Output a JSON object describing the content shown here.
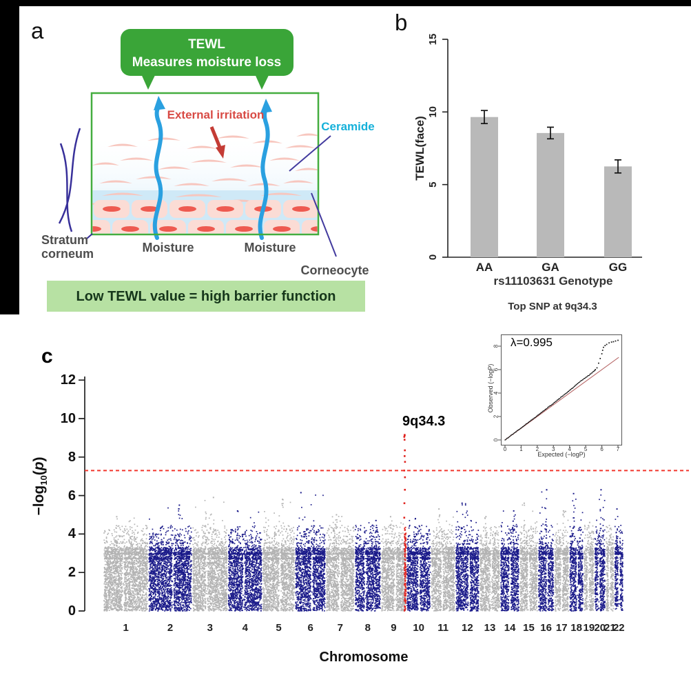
{
  "figure": {
    "panel_a": {
      "label": "a",
      "bubble": {
        "line1": "TEWL",
        "line2": "Measures moisture loss"
      },
      "irritation_label": "External irritation",
      "ceramide_label": "Ceramide",
      "stratum_line1": "Stratum",
      "stratum_line2": "corneum",
      "moisture_left": "Moisture",
      "moisture_right": "Moisture",
      "corneocyte_label": "Corneocyte",
      "banner_text": "Low TEWL value = high barrier function",
      "colors": {
        "bubble_green": "#3aa538",
        "box_border_green": "#44ad3f",
        "banner_green": "#b7e1a3",
        "ceramide_cyan": "#16b1da",
        "irritation_red": "#d84a44",
        "arrow_blue": "#2aa0e0",
        "pointer_purple": "#423a9e",
        "label_gray": "#4d4d4d"
      }
    },
    "panel_b": {
      "label": "b",
      "ylabel": "TEWL(face)",
      "xlabel": "rs11103631 Genotype",
      "caption": "Top SNP at 9q34.3"
    },
    "panel_c": {
      "label": "c",
      "ylabel_parts": {
        "prefix": "−log",
        "sub": "10",
        "open": "(",
        "variable": "p",
        "close": ")"
      },
      "xlabel": "Chromosome",
      "peak_label": "9q34.3",
      "inset": {
        "lambda_label": "λ=0.995",
        "xlabel": "Expected (−logP)",
        "ylabel": "Observed (−logP)"
      }
    }
  },
  "chart_data": [
    {
      "type": "bar",
      "panel": "b",
      "title": "Top SNP at 9q34.3",
      "xlabel": "rs11103631 Genotype",
      "ylabel": "TEWL(face)",
      "categories": [
        "AA",
        "GA",
        "GG"
      ],
      "values": [
        9.65,
        8.55,
        6.25
      ],
      "errors": [
        0.45,
        0.4,
        0.45
      ],
      "ylim": [
        0,
        15
      ],
      "yticks": [
        0,
        5,
        10,
        15
      ],
      "bar_color": "#b9b9b9",
      "grid": false
    },
    {
      "type": "scatter",
      "subtype": "manhattan",
      "panel": "c",
      "xlabel": "Chromosome",
      "ylabel": "-log10(p)",
      "ylim": [
        0,
        12
      ],
      "yticks": [
        0,
        2,
        4,
        6,
        8,
        10,
        12
      ],
      "significance_line": {
        "value": 7.3,
        "color": "#f2362c",
        "style": "dashed"
      },
      "colors": {
        "odd": "#b3b3b3",
        "even": "#1b1b8a"
      },
      "peak": {
        "chrom": 9,
        "locus": "9q34.3",
        "color": "#e02420",
        "top_value": 9.15,
        "stack_values": [
          4.85,
          5.6,
          6.3,
          6.95,
          7.3,
          7.75,
          8.05,
          8.35,
          8.9,
          9.05,
          9.12,
          9.15
        ],
        "dense_below": 4.35
      },
      "chromosomes": [
        {
          "chrom": "1",
          "rel_length": 249,
          "max_neglog10p": 4.9
        },
        {
          "chrom": "2",
          "rel_length": 243,
          "max_neglog10p": 5.5
        },
        {
          "chrom": "3",
          "rel_length": 198,
          "max_neglog10p": 5.9
        },
        {
          "chrom": "4",
          "rel_length": 191,
          "max_neglog10p": 5.2
        },
        {
          "chrom": "5",
          "rel_length": 181,
          "max_neglog10p": 5.8
        },
        {
          "chrom": "6",
          "rel_length": 171,
          "max_neglog10p": 6.15
        },
        {
          "chrom": "7",
          "rel_length": 159,
          "max_neglog10p": 5.0
        },
        {
          "chrom": "8",
          "rel_length": 146,
          "max_neglog10p": 4.7
        },
        {
          "chrom": "9",
          "rel_length": 141,
          "max_neglog10p": 4.9
        },
        {
          "chrom": "10",
          "rel_length": 136,
          "max_neglog10p": 4.8
        },
        {
          "chrom": "11",
          "rel_length": 135,
          "max_neglog10p": 5.3
        },
        {
          "chrom": "12",
          "rel_length": 134,
          "max_neglog10p": 5.6
        },
        {
          "chrom": "13",
          "rel_length": 115,
          "max_neglog10p": 4.9
        },
        {
          "chrom": "14",
          "rel_length": 107,
          "max_neglog10p": 5.2
        },
        {
          "chrom": "15",
          "rel_length": 102,
          "max_neglog10p": 5.6
        },
        {
          "chrom": "16",
          "rel_length": 90,
          "max_neglog10p": 6.3
        },
        {
          "chrom": "17",
          "rel_length": 83,
          "max_neglog10p": 5.2
        },
        {
          "chrom": "18",
          "rel_length": 80,
          "max_neglog10p": 6.1
        },
        {
          "chrom": "19",
          "rel_length": 59,
          "max_neglog10p": 4.6
        },
        {
          "chrom": "20",
          "rel_length": 63,
          "max_neglog10p": 6.3
        },
        {
          "chrom": "21",
          "rel_length": 48,
          "max_neglog10p": 4.3
        },
        {
          "chrom": "22",
          "rel_length": 51,
          "max_neglog10p": 5.3
        }
      ]
    },
    {
      "type": "scatter",
      "subtype": "qq",
      "panel": "c-inset",
      "lambda": 0.995,
      "xlabel": "Expected (−logP)",
      "ylabel": "Observed (−logP)",
      "xlim": [
        0,
        7
      ],
      "ylim": [
        0,
        8.6
      ],
      "xticks": [
        0,
        1,
        2,
        3,
        4,
        5,
        6,
        7
      ],
      "yticks": [
        0,
        2,
        4,
        6,
        8
      ],
      "identity_line_color": "#b86a6a",
      "curve": [
        [
          0,
          0
        ],
        [
          0.5,
          0.51
        ],
        [
          1,
          1.03
        ],
        [
          1.5,
          1.55
        ],
        [
          2,
          2.06
        ],
        [
          2.5,
          2.6
        ],
        [
          3,
          3.12
        ],
        [
          3.5,
          3.68
        ],
        [
          3.8,
          3.98
        ],
        [
          4,
          4.22
        ],
        [
          4.2,
          4.45
        ],
        [
          4.5,
          4.82
        ],
        [
          4.8,
          5.12
        ],
        [
          5,
          5.32
        ],
        [
          5.2,
          5.52
        ],
        [
          5.35,
          5.68
        ],
        [
          5.5,
          5.85
        ],
        [
          5.6,
          6.0
        ],
        [
          5.7,
          6.15
        ],
        [
          5.8,
          6.55
        ],
        [
          5.9,
          6.95
        ],
        [
          6.0,
          7.35
        ],
        [
          6.05,
          7.65
        ],
        [
          6.1,
          7.9
        ],
        [
          6.2,
          8.05
        ],
        [
          6.3,
          8.15
        ],
        [
          6.45,
          8.28
        ],
        [
          6.6,
          8.35
        ],
        [
          6.72,
          8.38
        ],
        [
          6.85,
          8.44
        ],
        [
          7.0,
          8.5
        ]
      ]
    }
  ]
}
